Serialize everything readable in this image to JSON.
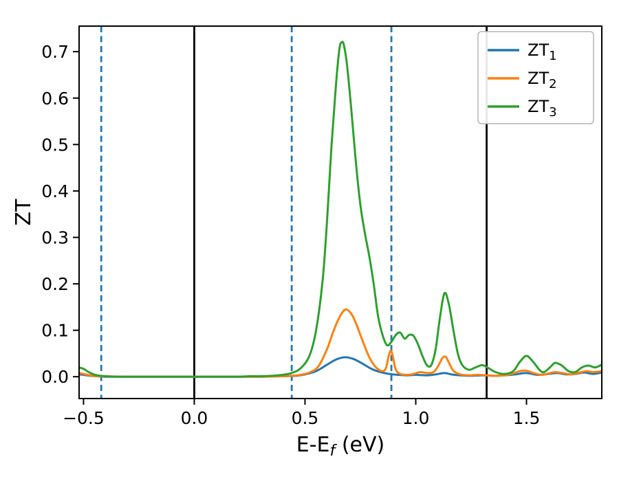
{
  "figure": {
    "background": "#ffffff"
  },
  "chart_data": {
    "type": "line",
    "title": "",
    "ylabel": "ZT",
    "xlabel_parts": {
      "pre": "E-E",
      "sub": "f",
      "post": " (eV)"
    },
    "xlim": [
      -0.52,
      1.84
    ],
    "ylim": [
      -0.047,
      0.755
    ],
    "grid": false,
    "xticks": {
      "values": [
        -0.5,
        0.0,
        0.5,
        1.0,
        1.5
      ],
      "labels": [
        "−0.5",
        "0.0",
        "0.5",
        "1.0",
        "1.5"
      ]
    },
    "yticks": {
      "values": [
        0.0,
        0.1,
        0.2,
        0.3,
        0.4,
        0.5,
        0.6,
        0.7
      ],
      "labels": [
        "0.0",
        "0.1",
        "0.2",
        "0.3",
        "0.4",
        "0.5",
        "0.6",
        "0.7"
      ]
    },
    "vlines": [
      {
        "x": -0.42,
        "style": "dashed",
        "color": "#1f77b4"
      },
      {
        "x": 0.0,
        "style": "solid",
        "color": "#000000"
      },
      {
        "x": 0.44,
        "style": "dashed",
        "color": "#1f77b4"
      },
      {
        "x": 0.89,
        "style": "dashed",
        "color": "#1f77b4"
      },
      {
        "x": 1.32,
        "style": "solid",
        "color": "#000000"
      }
    ],
    "legend": {
      "position": "upper right"
    },
    "series": [
      {
        "name": "ZT",
        "sub": "1",
        "color": "#1f77b4",
        "points": [
          [
            -0.52,
            0.005
          ],
          [
            -0.5,
            0.004
          ],
          [
            -0.47,
            0.002
          ],
          [
            -0.44,
            0.001
          ],
          [
            -0.4,
            0.0
          ],
          [
            -0.3,
            0.0
          ],
          [
            -0.2,
            0.0
          ],
          [
            -0.1,
            0.0
          ],
          [
            0.0,
            0.0
          ],
          [
            0.1,
            0.0
          ],
          [
            0.2,
            0.0
          ],
          [
            0.3,
            0.0
          ],
          [
            0.4,
            0.001
          ],
          [
            0.46,
            0.002
          ],
          [
            0.5,
            0.005
          ],
          [
            0.55,
            0.012
          ],
          [
            0.6,
            0.026
          ],
          [
            0.64,
            0.037
          ],
          [
            0.68,
            0.042
          ],
          [
            0.72,
            0.038
          ],
          [
            0.76,
            0.028
          ],
          [
            0.8,
            0.017
          ],
          [
            0.84,
            0.01
          ],
          [
            0.88,
            0.006
          ],
          [
            0.92,
            0.004
          ],
          [
            0.96,
            0.003
          ],
          [
            1.0,
            0.004
          ],
          [
            1.05,
            0.003
          ],
          [
            1.09,
            0.005
          ],
          [
            1.13,
            0.008
          ],
          [
            1.16,
            0.005
          ],
          [
            1.2,
            0.003
          ],
          [
            1.25,
            0.002
          ],
          [
            1.3,
            0.003
          ],
          [
            1.35,
            0.002
          ],
          [
            1.4,
            0.003
          ],
          [
            1.45,
            0.005
          ],
          [
            1.5,
            0.008
          ],
          [
            1.55,
            0.004
          ],
          [
            1.6,
            0.006
          ],
          [
            1.64,
            0.008
          ],
          [
            1.68,
            0.005
          ],
          [
            1.72,
            0.006
          ],
          [
            1.76,
            0.009
          ],
          [
            1.8,
            0.006
          ],
          [
            1.84,
            0.009
          ]
        ]
      },
      {
        "name": "ZT",
        "sub": "2",
        "color": "#ff7f0e",
        "points": [
          [
            -0.52,
            0.008
          ],
          [
            -0.5,
            0.006
          ],
          [
            -0.47,
            0.003
          ],
          [
            -0.44,
            0.001
          ],
          [
            -0.4,
            0.001
          ],
          [
            -0.3,
            0.0
          ],
          [
            -0.2,
            0.0
          ],
          [
            -0.1,
            0.0
          ],
          [
            0.0,
            0.0
          ],
          [
            0.1,
            0.0
          ],
          [
            0.2,
            0.0
          ],
          [
            0.3,
            0.0
          ],
          [
            0.38,
            0.001
          ],
          [
            0.44,
            0.002
          ],
          [
            0.48,
            0.004
          ],
          [
            0.52,
            0.009
          ],
          [
            0.56,
            0.022
          ],
          [
            0.6,
            0.06
          ],
          [
            0.63,
            0.1
          ],
          [
            0.66,
            0.132
          ],
          [
            0.685,
            0.145
          ],
          [
            0.71,
            0.135
          ],
          [
            0.73,
            0.115
          ],
          [
            0.75,
            0.09
          ],
          [
            0.77,
            0.065
          ],
          [
            0.79,
            0.042
          ],
          [
            0.81,
            0.026
          ],
          [
            0.83,
            0.016
          ],
          [
            0.85,
            0.012
          ],
          [
            0.865,
            0.018
          ],
          [
            0.878,
            0.045
          ],
          [
            0.888,
            0.056
          ],
          [
            0.898,
            0.04
          ],
          [
            0.91,
            0.015
          ],
          [
            0.93,
            0.006
          ],
          [
            0.96,
            0.004
          ],
          [
            0.99,
            0.006
          ],
          [
            1.02,
            0.01
          ],
          [
            1.05,
            0.008
          ],
          [
            1.08,
            0.01
          ],
          [
            1.1,
            0.022
          ],
          [
            1.12,
            0.04
          ],
          [
            1.135,
            0.043
          ],
          [
            1.15,
            0.03
          ],
          [
            1.17,
            0.013
          ],
          [
            1.2,
            0.005
          ],
          [
            1.24,
            0.003
          ],
          [
            1.28,
            0.004
          ],
          [
            1.32,
            0.003
          ],
          [
            1.36,
            0.002
          ],
          [
            1.4,
            0.003
          ],
          [
            1.44,
            0.007
          ],
          [
            1.47,
            0.012
          ],
          [
            1.5,
            0.013
          ],
          [
            1.53,
            0.008
          ],
          [
            1.57,
            0.004
          ],
          [
            1.6,
            0.007
          ],
          [
            1.63,
            0.01
          ],
          [
            1.66,
            0.008
          ],
          [
            1.7,
            0.005
          ],
          [
            1.74,
            0.009
          ],
          [
            1.77,
            0.012
          ],
          [
            1.8,
            0.01
          ],
          [
            1.84,
            0.012
          ]
        ]
      },
      {
        "name": "ZT",
        "sub": "3",
        "color": "#2ca02c",
        "points": [
          [
            -0.52,
            0.02
          ],
          [
            -0.5,
            0.017
          ],
          [
            -0.48,
            0.011
          ],
          [
            -0.46,
            0.006
          ],
          [
            -0.44,
            0.003
          ],
          [
            -0.42,
            0.002
          ],
          [
            -0.4,
            0.001
          ],
          [
            -0.35,
            0.0
          ],
          [
            -0.3,
            0.0
          ],
          [
            -0.25,
            0.0
          ],
          [
            -0.2,
            0.0
          ],
          [
            -0.15,
            0.0
          ],
          [
            -0.1,
            0.0
          ],
          [
            -0.05,
            0.0
          ],
          [
            0.0,
            0.0
          ],
          [
            0.05,
            0.0
          ],
          [
            0.1,
            0.0
          ],
          [
            0.15,
            0.0
          ],
          [
            0.2,
            0.0
          ],
          [
            0.25,
            0.001
          ],
          [
            0.3,
            0.001
          ],
          [
            0.35,
            0.002
          ],
          [
            0.4,
            0.004
          ],
          [
            0.44,
            0.008
          ],
          [
            0.48,
            0.018
          ],
          [
            0.52,
            0.045
          ],
          [
            0.55,
            0.1
          ],
          [
            0.58,
            0.21
          ],
          [
            0.6,
            0.34
          ],
          [
            0.62,
            0.5
          ],
          [
            0.64,
            0.63
          ],
          [
            0.655,
            0.705
          ],
          [
            0.665,
            0.72
          ],
          [
            0.675,
            0.715
          ],
          [
            0.69,
            0.67
          ],
          [
            0.71,
            0.57
          ],
          [
            0.73,
            0.46
          ],
          [
            0.75,
            0.37
          ],
          [
            0.77,
            0.31
          ],
          [
            0.79,
            0.26
          ],
          [
            0.81,
            0.2
          ],
          [
            0.83,
            0.13
          ],
          [
            0.85,
            0.09
          ],
          [
            0.87,
            0.068
          ],
          [
            0.89,
            0.075
          ],
          [
            0.91,
            0.09
          ],
          [
            0.93,
            0.095
          ],
          [
            0.95,
            0.082
          ],
          [
            0.97,
            0.09
          ],
          [
            0.99,
            0.088
          ],
          [
            1.01,
            0.07
          ],
          [
            1.03,
            0.045
          ],
          [
            1.05,
            0.025
          ],
          [
            1.07,
            0.025
          ],
          [
            1.09,
            0.06
          ],
          [
            1.11,
            0.13
          ],
          [
            1.13,
            0.18
          ],
          [
            1.15,
            0.155
          ],
          [
            1.17,
            0.1
          ],
          [
            1.19,
            0.05
          ],
          [
            1.21,
            0.025
          ],
          [
            1.24,
            0.015
          ],
          [
            1.27,
            0.02
          ],
          [
            1.3,
            0.025
          ],
          [
            1.33,
            0.018
          ],
          [
            1.36,
            0.01
          ],
          [
            1.4,
            0.006
          ],
          [
            1.44,
            0.012
          ],
          [
            1.47,
            0.032
          ],
          [
            1.5,
            0.045
          ],
          [
            1.53,
            0.032
          ],
          [
            1.56,
            0.014
          ],
          [
            1.58,
            0.01
          ],
          [
            1.61,
            0.022
          ],
          [
            1.63,
            0.03
          ],
          [
            1.66,
            0.024
          ],
          [
            1.69,
            0.012
          ],
          [
            1.72,
            0.01
          ],
          [
            1.75,
            0.02
          ],
          [
            1.78,
            0.024
          ],
          [
            1.81,
            0.02
          ],
          [
            1.84,
            0.026
          ]
        ]
      }
    ]
  }
}
